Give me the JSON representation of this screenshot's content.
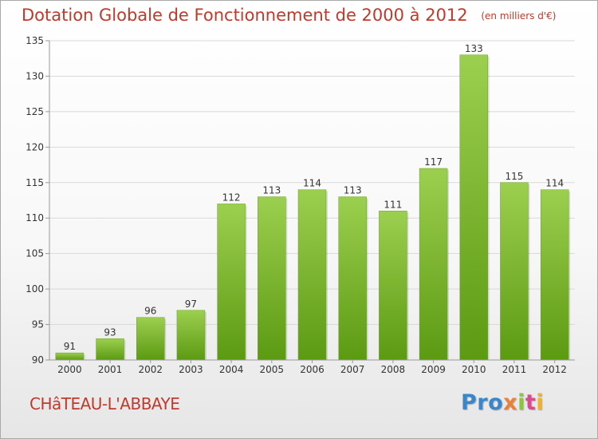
{
  "title": "Dotation Globale de Fonctionnement de 2000 à 2012",
  "unit_note": "(en milliers d'€)",
  "commune": "CHâTEAU-L'ABBAYE",
  "logo": [
    "Pro",
    "x",
    "i",
    "t",
    "i"
  ],
  "colors": {
    "accent": "#c0392b",
    "bar_top": "#9ccf4f",
    "bar_bottom": "#5c9a12"
  },
  "chart_data": {
    "type": "bar",
    "title": "Dotation Globale de Fonctionnement de 2000 à 2012",
    "subtitle": "(en milliers d'€)",
    "categories": [
      "2000",
      "2001",
      "2002",
      "2003",
      "2004",
      "2005",
      "2006",
      "2007",
      "2008",
      "2009",
      "2010",
      "2011",
      "2012"
    ],
    "values": [
      91,
      93,
      96,
      97,
      112,
      113,
      114,
      113,
      111,
      117,
      133,
      115,
      114
    ],
    "ylim": [
      90,
      135
    ],
    "yticks": [
      90,
      95,
      100,
      105,
      110,
      115,
      120,
      125,
      130,
      135
    ],
    "grid": true,
    "data_labels": true
  }
}
